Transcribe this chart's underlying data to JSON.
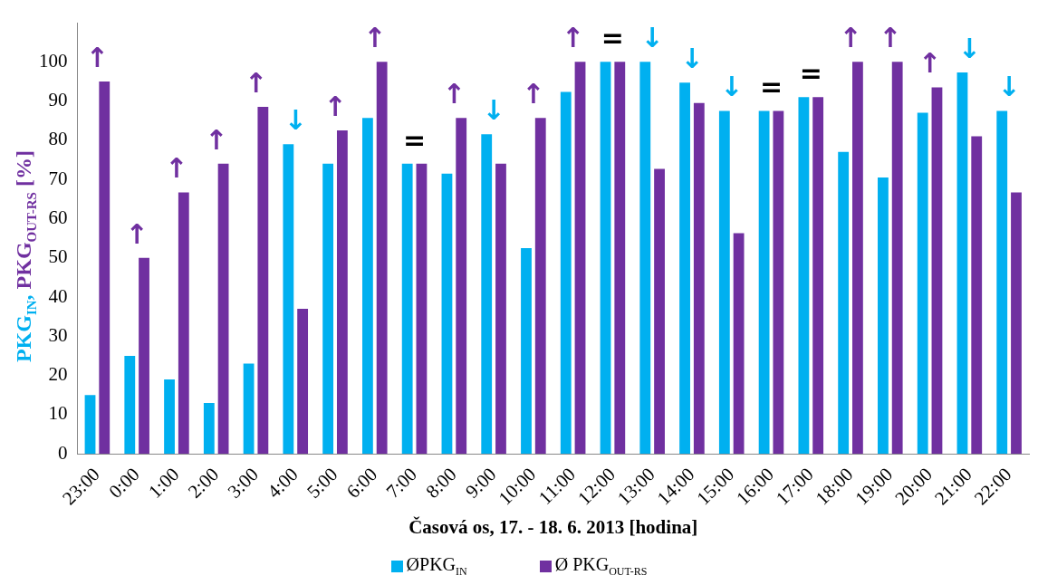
{
  "chart_data": {
    "type": "bar",
    "categories": [
      "23:00",
      "0:00",
      "1:00",
      "2:00",
      "3:00",
      "4:00",
      "5:00",
      "6:00",
      "7:00",
      "8:00",
      "9:00",
      "10:00",
      "11:00",
      "12:00",
      "13:00",
      "14:00",
      "15:00",
      "16:00",
      "17:00",
      "18:00",
      "19:00",
      "20:00",
      "21:00",
      "22:00"
    ],
    "series": [
      {
        "name": "ØPKG$_{IN}$",
        "color": "#00b0f0",
        "values": [
          15,
          25,
          19,
          13,
          23,
          79,
          74,
          85.7,
          74,
          71.5,
          81.5,
          52.5,
          92.3,
          100,
          100,
          94.7,
          87.5,
          87.5,
          91,
          77,
          70.5,
          87,
          97.3,
          87.5
        ]
      },
      {
        "name": "Ø PKG$_{OUT-RS}$",
        "color": "#7030a0",
        "values": [
          95,
          50,
          66.7,
          74,
          88.5,
          37,
          82.5,
          100,
          74,
          85.7,
          74,
          85.7,
          100,
          100,
          72.7,
          89.5,
          56.3,
          87.5,
          91,
          100,
          100,
          93.5,
          81,
          66.7
        ]
      }
    ],
    "xlabel": "Časová os, 17. - 18. 6. 2013 [hodina]",
    "ylabel": "PKG$_{IN}$, PKG$_{OUT-RS}$ [%]",
    "ylim": [
      0,
      110
    ],
    "yticks": [
      0,
      10,
      20,
      30,
      40,
      50,
      60,
      70,
      80,
      90,
      100
    ],
    "grid": false,
    "legend": "bottom",
    "annotations": [
      "↑",
      "↑",
      "↑",
      "↑",
      "↑",
      "↓",
      "↑",
      "↑",
      "=",
      "↑",
      "↓",
      "↑",
      "↑",
      "=",
      "↓",
      "↓",
      "↓",
      "=",
      "=",
      "↑",
      "↑",
      "↑",
      "↓",
      "↓"
    ]
  }
}
